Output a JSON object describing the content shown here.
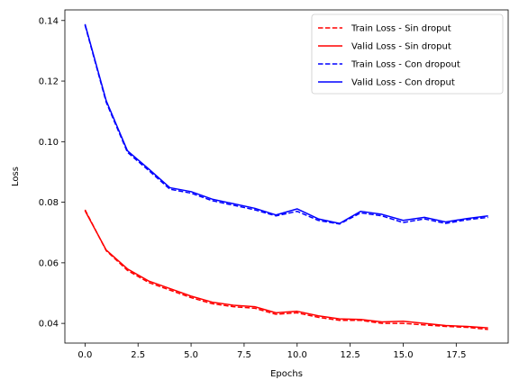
{
  "chart_data": {
    "type": "line",
    "title": "",
    "xlabel": "Epochs",
    "ylabel": "Loss",
    "xlim": [
      -0.95,
      19.95
    ],
    "ylim": [
      0.0335,
      0.1435
    ],
    "xticks": [
      0.0,
      2.5,
      5.0,
      7.5,
      10.0,
      12.5,
      15.0,
      17.5
    ],
    "xtick_labels": [
      "0.0",
      "2.5",
      "5.0",
      "7.5",
      "10.0",
      "12.5",
      "15.0",
      "17.5"
    ],
    "yticks": [
      0.04,
      0.06,
      0.08,
      0.1,
      0.12,
      0.14
    ],
    "ytick_labels": [
      "0.04",
      "0.06",
      "0.08",
      "0.10",
      "0.12",
      "0.14"
    ],
    "grid": false,
    "legend_position": "top-right",
    "x": [
      0,
      1,
      2,
      3,
      4,
      5,
      6,
      7,
      8,
      9,
      10,
      11,
      12,
      13,
      14,
      15,
      16,
      17,
      18,
      19
    ],
    "series": [
      {
        "name": "Train Loss - Sin droput",
        "color": "#ff0000",
        "style": "dashed",
        "values": [
          0.0775,
          0.064,
          0.0575,
          0.0535,
          0.051,
          0.0485,
          0.0465,
          0.0455,
          0.045,
          0.043,
          0.0435,
          0.042,
          0.041,
          0.041,
          0.04,
          0.04,
          0.0395,
          0.039,
          0.0387,
          0.038
        ]
      },
      {
        "name": "Valid Loss - Sin droput",
        "color": "#ff0000",
        "style": "solid",
        "values": [
          0.0772,
          0.0642,
          0.058,
          0.054,
          0.0515,
          0.049,
          0.047,
          0.046,
          0.0455,
          0.0435,
          0.044,
          0.0425,
          0.0415,
          0.0413,
          0.0405,
          0.0407,
          0.04,
          0.0393,
          0.039,
          0.0385
        ]
      },
      {
        "name": "Train Loss - Con dropout",
        "color": "#0000ff",
        "style": "dashed",
        "values": [
          0.1385,
          0.113,
          0.0965,
          0.0905,
          0.0843,
          0.083,
          0.0805,
          0.079,
          0.0775,
          0.0755,
          0.077,
          0.074,
          0.0728,
          0.0765,
          0.0755,
          0.0733,
          0.0745,
          0.073,
          0.0742,
          0.075
        ]
      },
      {
        "name": "Valid Loss - Con droput",
        "color": "#0000ff",
        "style": "solid",
        "values": [
          0.1388,
          0.1135,
          0.097,
          0.091,
          0.0848,
          0.0835,
          0.081,
          0.0795,
          0.078,
          0.0758,
          0.0778,
          0.0745,
          0.073,
          0.077,
          0.076,
          0.074,
          0.075,
          0.0735,
          0.0746,
          0.0755
        ]
      }
    ]
  }
}
